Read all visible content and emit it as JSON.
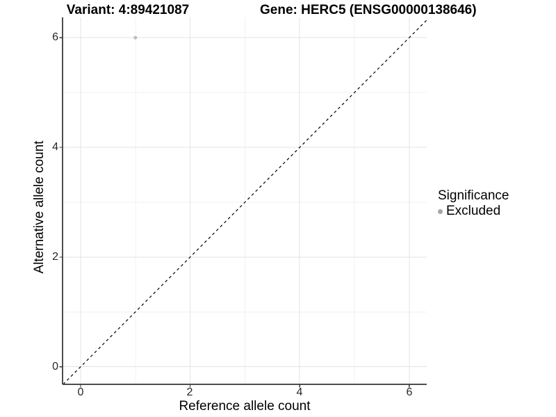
{
  "figure": {
    "title_left": "Variant: 4:89421087",
    "title_right": "Gene: HERC5 (ENSG00000138646)"
  },
  "axes": {
    "x_label": "Reference allele count",
    "y_label": "Alternative allele count",
    "x_tick_labels": [
      "0",
      "2",
      "4",
      "6"
    ],
    "y_tick_labels": [
      "6",
      "4",
      "2",
      "0"
    ]
  },
  "legend": {
    "title": "Significance",
    "items": [
      {
        "label": "Excluded",
        "marker_color": "#a6a6a6"
      }
    ]
  },
  "colors": {
    "background": "#ffffff",
    "grid_major": "#e3e3e3",
    "grid_minor": "#f0f0f0",
    "axis_line": "#4d4d4d",
    "tick_mark": "#333333",
    "identity_line": "#000000",
    "point": "#bcbcbc"
  },
  "chart_data": {
    "type": "scatter",
    "title": "Variant: 4:89421087 / Gene: HERC5 (ENSG00000138646)",
    "xlabel": "Reference allele count",
    "ylabel": "Alternative allele count",
    "xlim": [
      -0.33,
      6.32
    ],
    "ylim": [
      -0.32,
      6.37
    ],
    "x_major_ticks": [
      0,
      2,
      4,
      6
    ],
    "y_major_ticks": [
      0,
      2,
      4,
      6
    ],
    "x_minor_ticks": [
      1,
      3,
      5
    ],
    "y_minor_ticks": [
      1,
      3,
      5
    ],
    "grid": "major+minor",
    "legend_position": "right",
    "series": [
      {
        "name": "Excluded",
        "x": [
          1
        ],
        "y": [
          6
        ],
        "color": "#bcbcbc",
        "marker": "circle",
        "size": 2.5
      }
    ],
    "reference_line": {
      "label": "identity y=x",
      "slope": 1,
      "intercept": 0,
      "style": "dashed",
      "color": "#000000"
    }
  }
}
